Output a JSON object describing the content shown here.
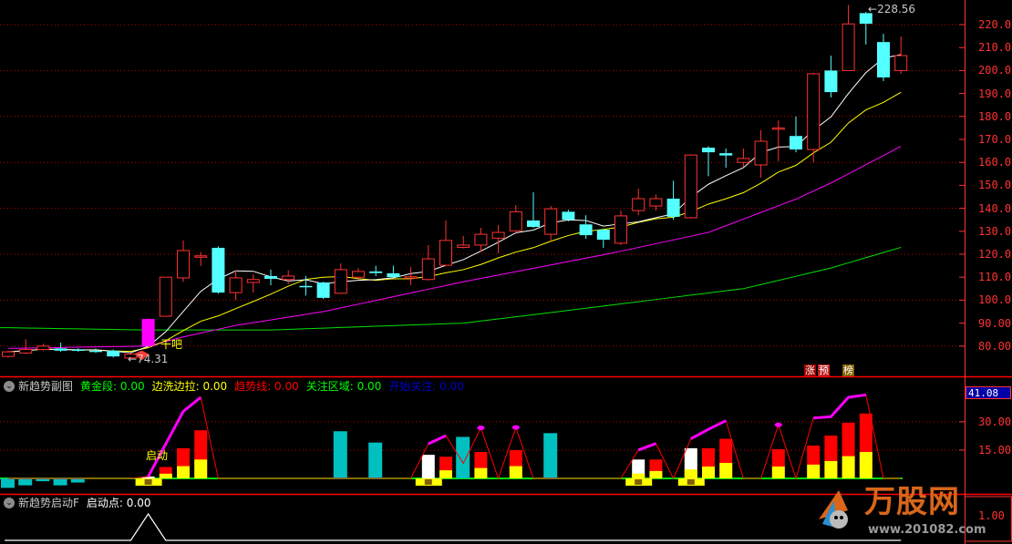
{
  "colors": {
    "up": "#ff3232",
    "down": "#54ffff",
    "launch_candle": "#ff00ff",
    "ma_white": "#ffffff",
    "ma_yellow": "#ffff00",
    "ma_magenta": "#ff00ff",
    "ma_green": "#00e000",
    "grid": "#c00000",
    "axis": "#ff3232"
  },
  "main_panel": {
    "high_label": "228.56",
    "low_label": "74.31",
    "signal_label": "干吧",
    "badges": [
      {
        "text": "涨",
        "bg": "#a00000"
      },
      {
        "text": "预",
        "bg": "#c02020"
      },
      {
        "text": "榜",
        "bg": "#806000"
      }
    ],
    "axis_ticks": [
      "220.0",
      "210.0",
      "200.0",
      "190.0",
      "180.0",
      "170.0",
      "160.0",
      "150.0",
      "140.0",
      "130.0",
      "120.0",
      "110.0",
      "100.0",
      "90.00",
      "80.00"
    ]
  },
  "indicator1": {
    "title": "新趋势副图",
    "items": [
      {
        "label": "黄金段: 0.00",
        "color": "#00ff00"
      },
      {
        "label": "边洗边拉: 0.00",
        "color": "#ffff00"
      },
      {
        "label": "趋势线: 0.00",
        "color": "#ff0000"
      },
      {
        "label": "关注区域: 0.00",
        "color": "#00ff00"
      },
      {
        "label": "开始关注: 0.00",
        "color": "#0000c8"
      }
    ],
    "current_value": "41.08",
    "axis_ticks": [
      "30.00",
      "15.00"
    ],
    "start_label": "启动"
  },
  "indicator2": {
    "title": "新趋势启动F",
    "items": [
      {
        "label": "启动点: 0.00",
        "color": "#ffffff"
      }
    ],
    "axis_ticks": [
      "1.00"
    ]
  },
  "logo": {
    "text": "万股网",
    "url": "www.201082.com"
  },
  "chart_data": [
    {
      "type": "candlestick",
      "panel": "main",
      "ylim": [
        75,
        228.56
      ],
      "ticks": [
        80,
        90,
        100,
        110,
        120,
        130,
        140,
        150,
        160,
        170,
        180,
        190,
        200,
        210,
        220
      ],
      "grid": "dotted every 20",
      "launch_index": 8,
      "ohlc": [
        [
          75.5,
          78,
          75,
          77.5
        ],
        [
          77,
          83,
          76.5,
          78.5
        ],
        [
          78.5,
          81,
          78,
          80
        ],
        [
          79,
          81.5,
          77.5,
          78
        ],
        [
          78.5,
          79,
          77.5,
          78
        ],
        [
          78,
          79,
          77,
          77.5
        ],
        [
          78,
          78.5,
          75,
          75.5
        ],
        [
          74.8,
          77,
          74.31,
          76.5
        ],
        [
          80,
          92,
          79.5,
          91.8
        ],
        [
          93,
          110,
          93,
          110
        ],
        [
          109.7,
          126,
          108,
          121.6
        ],
        [
          119,
          121,
          114.8,
          119.3
        ],
        [
          122.8,
          123.5,
          102.8,
          103.3
        ],
        [
          103.3,
          112.9,
          100,
          109.7
        ],
        [
          107.7,
          111.3,
          103.3,
          109
        ],
        [
          110.5,
          113.3,
          106.5,
          109.3
        ],
        [
          109,
          113,
          107,
          110.5
        ],
        [
          106.2,
          110.5,
          102,
          106
        ],
        [
          107.7,
          108,
          100.5,
          101
        ],
        [
          103,
          116,
          102.8,
          113.3
        ],
        [
          110,
          114,
          109,
          112.5
        ],
        [
          112.5,
          115,
          110.5,
          111.8
        ],
        [
          111.7,
          115,
          109.8,
          110
        ],
        [
          109.8,
          114.5,
          106.5,
          110.2
        ],
        [
          109,
          124,
          108.5,
          118
        ],
        [
          115.2,
          134.7,
          115,
          126
        ],
        [
          123,
          128,
          122.5,
          124
        ],
        [
          124,
          131.5,
          121,
          128.7
        ],
        [
          127,
          132.7,
          120.4,
          129.5
        ],
        [
          130.2,
          141.4,
          128.7,
          138.5
        ],
        [
          134.7,
          147,
          131.5,
          131.9
        ],
        [
          128.7,
          141,
          125.6,
          139.8
        ],
        [
          138.5,
          139.4,
          134.3,
          135
        ],
        [
          133,
          137,
          126.7,
          128.3
        ],
        [
          130.7,
          131,
          122.8,
          126.3
        ],
        [
          124.8,
          139,
          124,
          136.7
        ],
        [
          139,
          148.6,
          137,
          144.2
        ],
        [
          141,
          146,
          139,
          144.2
        ],
        [
          144.2,
          152,
          135,
          136.3
        ],
        [
          135.9,
          163.5,
          135.5,
          163.2
        ],
        [
          166.4,
          167,
          154,
          164.4
        ],
        [
          164,
          166,
          157.7,
          163
        ],
        [
          160,
          166,
          158,
          161.7
        ],
        [
          158.9,
          174,
          153.3,
          169.2
        ],
        [
          174.8,
          178.3,
          160.5,
          175
        ],
        [
          171.5,
          180,
          164.4,
          165.6
        ],
        [
          165.6,
          199,
          160,
          198.6
        ],
        [
          200,
          206.5,
          188.3,
          190.6
        ],
        [
          200,
          228.56,
          200,
          220.3
        ],
        [
          225,
          225.5,
          211.3,
          220.4
        ],
        [
          212.4,
          216,
          195.4,
          197
        ],
        [
          200,
          214.8,
          198.6,
          206.5
        ]
      ],
      "ma_white_period": 5,
      "ma_yellow_period": 10,
      "ma_magenta": [
        [
          0,
          79
        ],
        [
          8,
          80
        ],
        [
          10,
          84
        ],
        [
          13,
          89
        ],
        [
          18,
          95
        ],
        [
          26,
          108
        ],
        [
          34.5,
          120.5
        ],
        [
          40,
          129.5
        ],
        [
          45,
          144
        ],
        [
          47,
          151
        ],
        [
          51,
          167
        ]
      ],
      "ma_green": [
        [
          0,
          88
        ],
        [
          8,
          87
        ],
        [
          15,
          87
        ],
        [
          26,
          90
        ],
        [
          31,
          94.6
        ],
        [
          36.7,
          100
        ],
        [
          42,
          105
        ],
        [
          47,
          114
        ],
        [
          51,
          123
        ]
      ]
    },
    {
      "type": "bar",
      "panel": "indicator1",
      "ylim": [
        -6,
        45
      ],
      "ticks": [
        15,
        30
      ],
      "bars": [
        {
          "i": 0,
          "cyan": -5
        },
        {
          "i": 1,
          "cyan": -3.7
        },
        {
          "i": 2,
          "cyan": -1.5
        },
        {
          "i": 3,
          "cyan": -3.7
        },
        {
          "i": 4,
          "cyan": -2.2
        },
        {
          "i": 8,
          "white": 1
        },
        {
          "i": 9,
          "yellow": 2.5,
          "red": 6
        },
        {
          "i": 10,
          "yellow": 6.5,
          "red": 16
        },
        {
          "i": 11,
          "yellow": 10,
          "red": 25.5
        },
        {
          "i": 19,
          "cyan": 25
        },
        {
          "i": 21,
          "cyan": 19
        },
        {
          "i": 24,
          "white": 12.5
        },
        {
          "i": 25,
          "yellow": 4.3,
          "red": 11.5
        },
        {
          "i": 26,
          "cyan": 22
        },
        {
          "i": 27,
          "yellow": 5.5,
          "red": 14
        },
        {
          "i": 29,
          "yellow": 6.5,
          "red": 15
        },
        {
          "i": 31,
          "cyan": 24
        },
        {
          "i": 36,
          "yellow": 2.6,
          "white": 10
        },
        {
          "i": 37,
          "yellow": 3.9,
          "red": 10
        },
        {
          "i": 39,
          "yellow": 4.8,
          "white": 16
        },
        {
          "i": 40,
          "yellow": 6.3,
          "red": 16
        },
        {
          "i": 41,
          "yellow": 8.2,
          "red": 21
        },
        {
          "i": 44,
          "yellow": 6.3,
          "red": 15.5
        },
        {
          "i": 46,
          "yellow": 7.3,
          "red": 17.4
        },
        {
          "i": 47,
          "yellow": 9.2,
          "red": 22.7
        },
        {
          "i": 48,
          "yellow": 11.8,
          "red": 29.5
        },
        {
          "i": 49,
          "yellow": 14,
          "red": 34.4
        }
      ],
      "start_markers": [
        8,
        24,
        36,
        39
      ],
      "trend_line": [
        [
          0,
          0
        ],
        [
          7,
          0
        ],
        [
          8,
          1
        ],
        [
          10,
          35.5
        ],
        [
          11,
          43
        ],
        [
          12,
          0
        ],
        [
          23,
          0
        ],
        [
          24,
          18.3
        ],
        [
          25,
          22.7
        ],
        [
          26,
          8
        ],
        [
          27,
          26.8
        ],
        [
          28,
          0
        ],
        [
          29,
          27
        ],
        [
          30,
          0
        ],
        [
          35,
          0
        ],
        [
          36,
          15
        ],
        [
          37,
          18.5
        ],
        [
          38,
          0
        ],
        [
          39,
          21
        ],
        [
          40,
          26
        ],
        [
          41,
          30.6
        ],
        [
          42,
          0
        ],
        [
          43,
          0
        ],
        [
          44,
          28.4
        ],
        [
          45,
          0
        ],
        [
          46,
          32
        ],
        [
          47,
          32.7
        ],
        [
          48,
          43
        ],
        [
          49,
          44.3
        ],
        [
          50,
          0
        ],
        [
          51,
          0
        ]
      ],
      "focus_segments": [
        [
          [
            8,
            1
          ],
          [
            10,
            35.5
          ],
          [
            11,
            43
          ]
        ],
        [
          [
            24,
            18.3
          ],
          [
            25,
            22.7
          ]
        ],
        [
          [
            27,
            26.8
          ]
        ],
        [
          [
            29,
            27
          ]
        ],
        [
          [
            36,
            15
          ],
          [
            37,
            18.5
          ]
        ],
        [
          [
            39,
            21
          ],
          [
            40,
            26
          ],
          [
            41,
            30.6
          ]
        ],
        [
          [
            44,
            28.4
          ]
        ],
        [
          [
            46,
            32
          ],
          [
            47,
            32.7
          ],
          [
            48,
            43
          ],
          [
            49,
            44.3
          ]
        ]
      ]
    },
    {
      "type": "line",
      "panel": "indicator2",
      "ylim": [
        0,
        1
      ],
      "ticks": [
        1
      ],
      "points": [
        [
          -0.2,
          0
        ],
        [
          7,
          0
        ],
        [
          8,
          1
        ],
        [
          9,
          0
        ],
        [
          51,
          0
        ]
      ]
    }
  ]
}
